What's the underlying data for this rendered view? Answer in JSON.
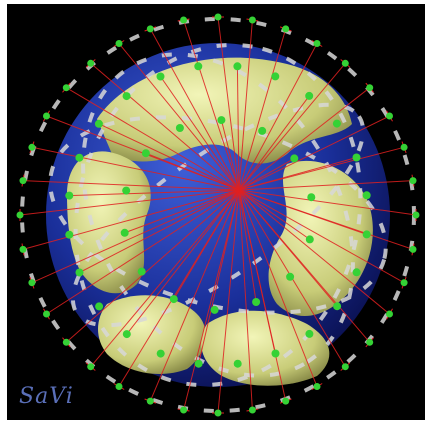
{
  "logo": {
    "text": "SaVi"
  },
  "colors": {
    "background": "#000000",
    "ocean": "#1a2f9a",
    "land": "#d4d98a",
    "satellite": "#35d235",
    "link": "#e02020",
    "orbit": "#d8d8d8"
  }
}
